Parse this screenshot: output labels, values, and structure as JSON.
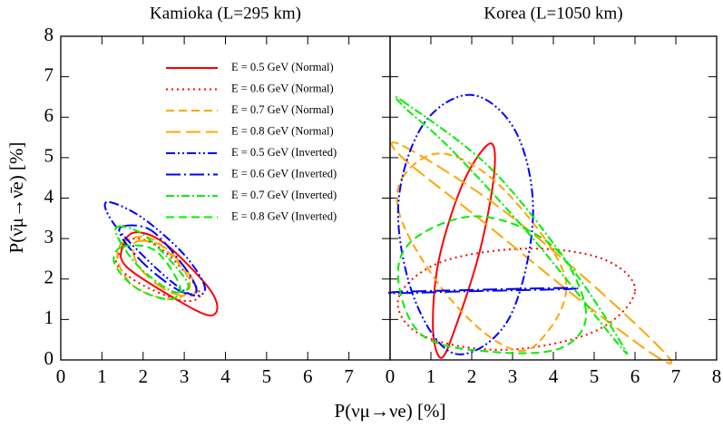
{
  "chart_data": [
    {
      "type": "line",
      "title": "Kamioka (L=295 km)",
      "xlabel": "P(νμ→νe) [%]",
      "ylabel": "P(ν̄μ→ν̄e) [%]",
      "xlim": [
        0,
        8
      ],
      "ylim": [
        0,
        8
      ],
      "xticks": [
        0,
        1,
        2,
        3,
        4,
        5,
        6,
        7
      ],
      "yticks": [
        0,
        1,
        2,
        3,
        4,
        5,
        6,
        7,
        8
      ],
      "yticklabels": true,
      "legend": "upper right",
      "series": [
        {
          "name": "E = 0.5 GeV (Normal)",
          "color": "#ff0000",
          "dash": "solid",
          "x": [
            1.5,
            1.8,
            2.5,
            3.5,
            3.8,
            3.6,
            2.8,
            1.6
          ],
          "values": [
            2.8,
            3.15,
            2.9,
            1.9,
            1.35,
            1.1,
            1.5,
            2.3
          ]
        },
        {
          "name": "E = 0.6 GeV (Normal)",
          "color": "#ff0000",
          "dash": "dotted",
          "x": [
            1.4,
            1.8,
            2.5,
            3.3,
            3.3,
            2.8,
            1.9,
            1.4
          ],
          "values": [
            2.6,
            3.0,
            2.7,
            1.8,
            1.5,
            1.5,
            1.9,
            2.3
          ]
        },
        {
          "name": "E = 0.7 GeV (Normal)",
          "color": "#ffa500",
          "dash": "dashed",
          "x": [
            1.5,
            2.2,
            3.0,
            3.1,
            2.6,
            1.8,
            1.4
          ],
          "values": [
            2.9,
            3.0,
            2.2,
            1.7,
            1.5,
            1.8,
            2.4
          ]
        },
        {
          "name": "E = 0.8 GeV (Normal)",
          "color": "#ffa500",
          "dash": "longdash",
          "x": [
            1.8,
            2.5,
            3.2,
            3.2,
            2.6,
            1.9
          ],
          "values": [
            2.9,
            2.8,
            2.0,
            1.6,
            1.7,
            2.3
          ]
        },
        {
          "name": "E = 0.5 GeV (Inverted)",
          "color": "#0000ff",
          "dash": "dashdotdot",
          "x": [
            1.2,
            2.0,
            3.0,
            3.5,
            3.2,
            2.5,
            1.5,
            1.1
          ],
          "values": [
            3.9,
            3.5,
            2.6,
            1.8,
            1.6,
            2.1,
            3.1,
            3.7
          ]
        },
        {
          "name": "E = 0.6 GeV (Inverted)",
          "color": "#0000ff",
          "dash": "longdashdot",
          "x": [
            1.5,
            2.2,
            3.0,
            3.3,
            2.9,
            2.1,
            1.5
          ],
          "values": [
            3.3,
            3.2,
            2.3,
            1.7,
            1.7,
            2.3,
            3.0
          ]
        },
        {
          "name": "E = 0.7 GeV (Inverted)",
          "color": "#00ee00",
          "dash": "dashdot",
          "x": [
            1.4,
            2.0,
            2.8,
            3.1,
            2.7,
            1.9,
            1.4
          ],
          "values": [
            3.3,
            3.1,
            2.3,
            1.8,
            1.7,
            2.3,
            3.0
          ]
        },
        {
          "name": "E = 0.8 GeV (Inverted)",
          "color": "#00ee00",
          "dash": "dashed",
          "x": [
            1.5,
            2.3,
            2.9,
            2.6,
            1.8,
            1.3
          ],
          "values": [
            2.8,
            2.7,
            1.8,
            1.5,
            1.8,
            2.4
          ]
        }
      ]
    },
    {
      "type": "line",
      "title": "Korea (L=1050 km)",
      "xlim": [
        0,
        8
      ],
      "ylim": [
        0,
        8
      ],
      "xticks": [
        0,
        1,
        2,
        3,
        4,
        5,
        6,
        7,
        8
      ],
      "yticks": [
        0,
        1,
        2,
        3,
        4,
        5,
        6,
        7,
        8
      ],
      "yticklabels": false,
      "series": [
        {
          "color": "#ff0000",
          "dash": "solid",
          "x": [
            1.25,
            1.05,
            1.2,
            1.8,
            2.45,
            2.55,
            2.2,
            1.6
          ],
          "values": [
            0.05,
            0.8,
            2.5,
            4.4,
            5.35,
            4.6,
            2.7,
            0.8
          ]
        },
        {
          "color": "#ff0000",
          "dash": "dotted",
          "x": [
            6.0,
            5.2,
            3.3,
            1.2,
            0.2,
            0.8,
            2.8,
            5.0
          ],
          "values": [
            1.7,
            2.5,
            2.75,
            2.4,
            1.5,
            0.6,
            0.25,
            0.7
          ]
        },
        {
          "color": "#ffa500",
          "dash": "dashed",
          "x": [
            0.3,
            1.3,
            2.8,
            4.3,
            3.6,
            2.7,
            1.4,
            0.3
          ],
          "values": [
            4.5,
            5.1,
            4.2,
            2.0,
            0.4,
            0.4,
            1.6,
            3.4
          ]
        },
        {
          "color": "#ffa500",
          "dash": "longdash",
          "x": [
            0.3,
            2.5,
            4.8,
            6.75,
            6.5,
            4.5,
            2.3,
            0.3
          ],
          "values": [
            5.3,
            3.9,
            2.0,
            0.15,
            0.1,
            1.6,
            3.4,
            5.0
          ]
        },
        {
          "color": "#0000ff",
          "dash": "dashdotdot",
          "x": [
            3.5,
            3.1,
            2.0,
            0.8,
            0.2,
            0.6,
            1.6,
            2.9
          ],
          "values": [
            3.5,
            5.6,
            6.55,
            5.8,
            3.8,
            1.5,
            0.15,
            1.0
          ]
        },
        {
          "color": "#0000ff",
          "dash": "longdashdot",
          "x": [
            0.2,
            2.0,
            4.3,
            4.3,
            2.0,
            0.2
          ],
          "values": [
            1.65,
            1.7,
            1.75,
            1.78,
            1.73,
            1.68
          ]
        },
        {
          "color": "#00ee00",
          "dash": "dashdot",
          "x": [
            0.3,
            2.5,
            4.5,
            5.7,
            5.5,
            3.5,
            1.5,
            0.4
          ],
          "values": [
            6.4,
            4.7,
            2.2,
            0.35,
            0.5,
            3.0,
            5.2,
            6.2
          ]
        },
        {
          "color": "#00ee00",
          "dash": "dashed",
          "x": [
            4.8,
            4.0,
            2.2,
            0.6,
            0.2,
            0.8,
            2.5,
            4.2
          ],
          "values": [
            1.2,
            2.8,
            3.55,
            3.0,
            2.0,
            0.6,
            0.2,
            0.3
          ]
        }
      ]
    }
  ]
}
